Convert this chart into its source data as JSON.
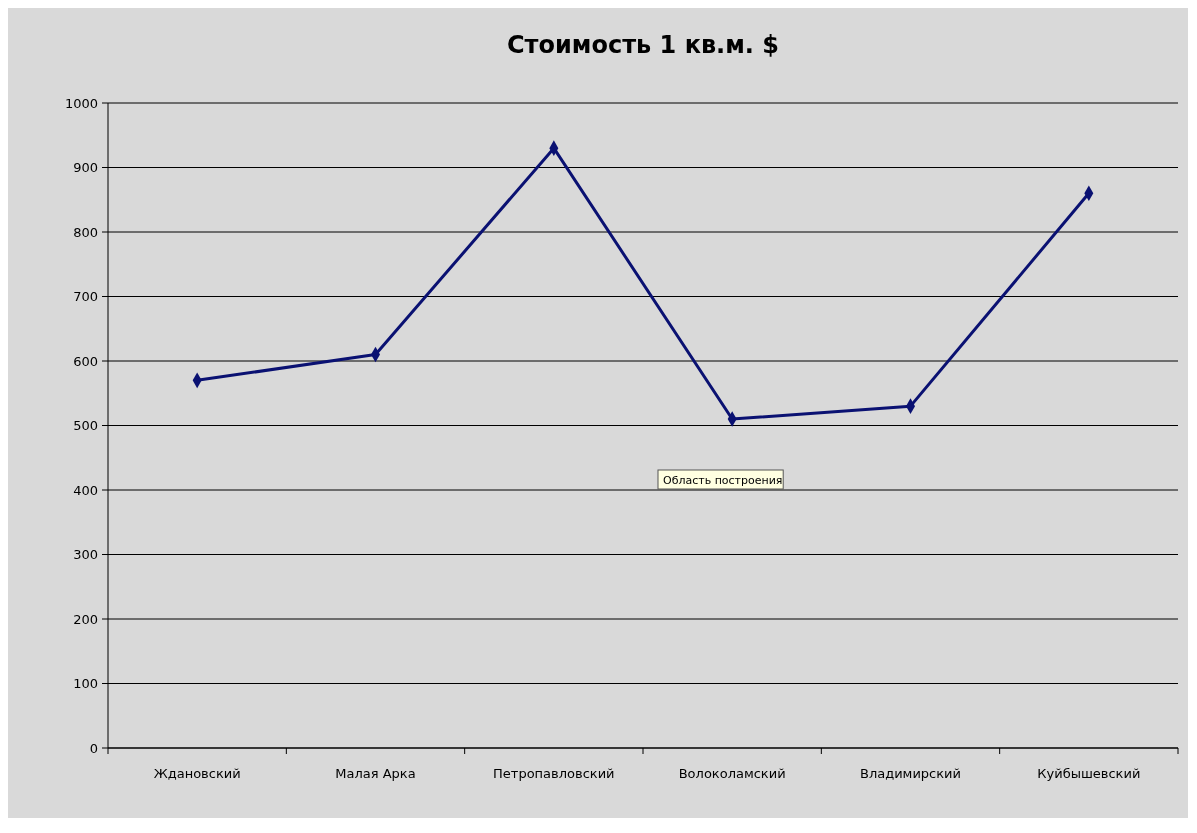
{
  "chart_data": {
    "type": "line",
    "title": "Стоимость 1 кв.м. $",
    "categories": [
      "Ждановский",
      "Малая Арка",
      "Петропавловский",
      "Волоколамский",
      "Владимирский",
      "Куйбышевский"
    ],
    "series": [
      {
        "color": "#0a1172",
        "values": [
          570,
          610,
          930,
          510,
          530,
          860
        ]
      }
    ],
    "ylim": [
      0,
      1000
    ],
    "yticks": [
      0,
      100,
      200,
      300,
      400,
      500,
      600,
      700,
      800,
      900,
      1000
    ],
    "grid": "y",
    "marker": "diamond",
    "line_style": "solid",
    "annotations": [
      "Область построения"
    ]
  }
}
